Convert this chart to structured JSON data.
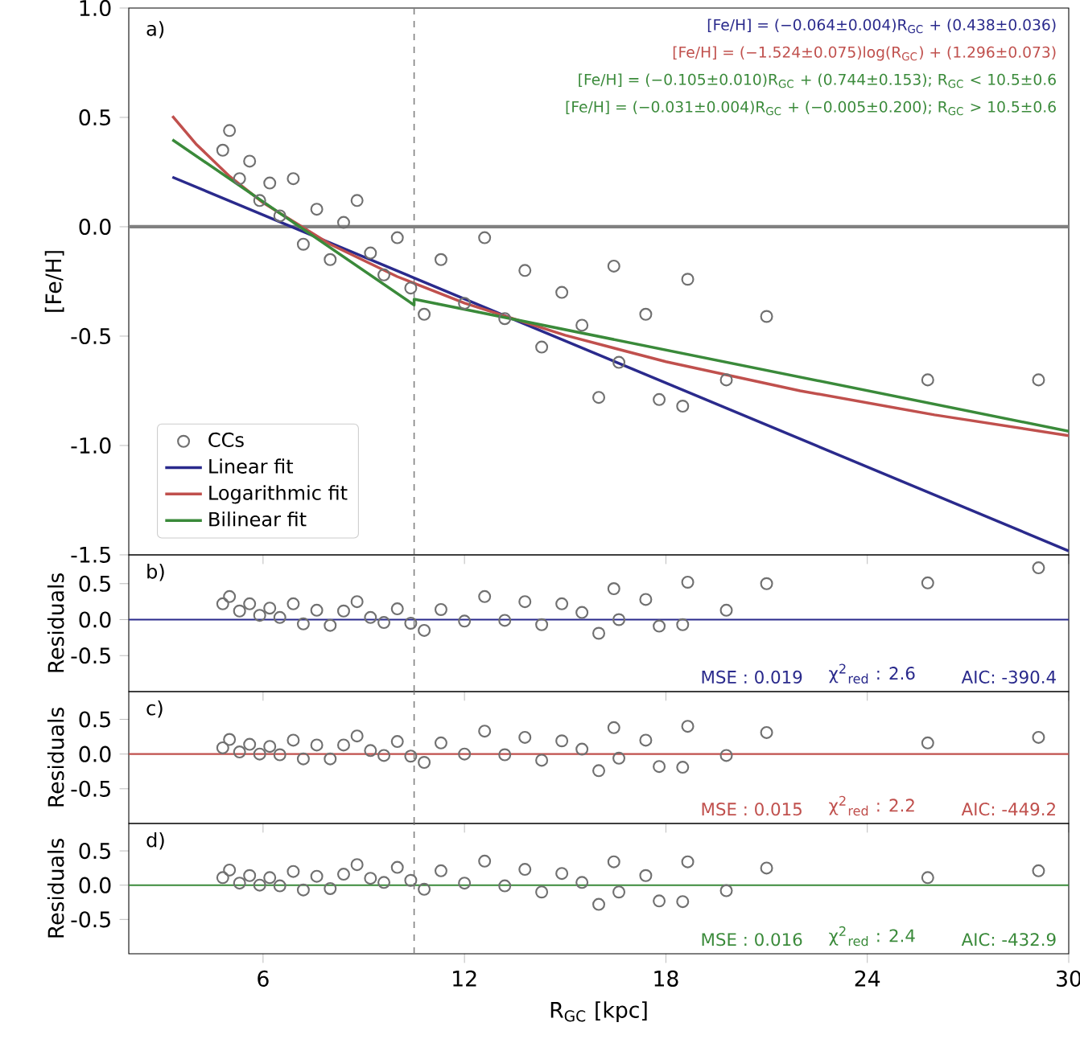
{
  "chart_data": [
    {
      "type": "scatter",
      "ylabel": "[Fe/H]",
      "xlim": [
        2,
        30
      ],
      "ylim": [
        -1.5,
        1.0
      ],
      "xticks": [
        6,
        12,
        18,
        24,
        30
      ],
      "yticks": [
        {
          "value": -1.5,
          "label": "-1.5"
        },
        {
          "value": -1.0,
          "label": "-1.0"
        },
        {
          "value": -0.5,
          "label": "-0.5"
        },
        {
          "value": 0.0,
          "label": "0.0"
        },
        {
          "value": 0.5,
          "label": "0.5"
        },
        {
          "value": 1.0,
          "label": "1.0"
        }
      ],
      "tick_labels": "y",
      "legend": "bottom left",
      "annotations": [
        "a)",
        "[Fe/H] = (−0.064±0.004)R$_{GC}$ + (0.438±0.036)",
        "[Fe/H] = (−1.524±0.075)log(R$_{GC}$) + (1.296±0.073)",
        "[Fe/H] = (−0.105±0.010)R$_{GC}$ + (0.744±0.153);   R$_{GC}$ < 10.5±0.6",
        "[Fe/H] = (−0.031±0.004)R$_{GC}$ + (−0.005±0.200);   R$_{GC}$ > 10.5±0.6"
      ],
      "ref_lines": [
        {
          "axis": "y",
          "value": 0.0,
          "color": "#808080",
          "line_style": "solid"
        },
        {
          "axis": "x",
          "value": 10.5,
          "color": "#808080",
          "line_style": "dashed"
        }
      ],
      "series": [
        {
          "name": "CCs",
          "marker": "circle",
          "color": "#707070",
          "x": [
            4.8,
            5.0,
            5.3,
            5.6,
            5.9,
            6.2,
            6.5,
            6.9,
            7.2,
            7.6,
            8.0,
            8.4,
            8.8,
            9.2,
            9.6,
            10.0,
            10.4,
            10.8,
            11.3,
            12.0,
            12.6,
            13.2,
            13.8,
            14.3,
            14.9,
            15.5,
            16.0,
            16.45,
            16.6,
            17.4,
            17.8,
            18.5,
            18.65,
            19.8,
            21.0,
            25.8,
            29.1
          ],
          "values": [
            0.35,
            0.44,
            0.22,
            0.3,
            0.12,
            0.2,
            0.05,
            0.22,
            -0.08,
            0.08,
            -0.15,
            0.02,
            0.12,
            -0.12,
            -0.22,
            -0.05,
            -0.28,
            -0.4,
            -0.15,
            -0.35,
            -0.05,
            -0.42,
            -0.2,
            -0.55,
            -0.3,
            -0.45,
            -0.78,
            -0.18,
            -0.62,
            -0.4,
            -0.79,
            -0.82,
            -0.24,
            -0.7,
            -0.41,
            -0.7,
            -0.7
          ]
        },
        {
          "name": "Linear fit",
          "type": "line",
          "color": "#2a2a8c",
          "x": [
            3.3,
            30
          ],
          "values": [
            0.227,
            -1.482
          ]
        },
        {
          "name": "Logarithmic fit",
          "type": "line",
          "color": "#c0504d",
          "x": [
            3.3,
            4,
            5,
            6,
            8,
            10,
            12,
            15,
            18,
            22,
            26,
            30
          ],
          "values": [
            0.506,
            0.379,
            0.231,
            0.11,
            -0.08,
            -0.228,
            -0.349,
            -0.496,
            -0.617,
            -0.75,
            -0.86,
            -0.955
          ]
        },
        {
          "name": "Bilinear fit",
          "type": "line",
          "color": "#3a8a3a",
          "x": [
            3.3,
            10.5,
            10.5,
            30
          ],
          "values": [
            0.398,
            -0.358,
            -0.331,
            -0.935
          ]
        }
      ]
    },
    {
      "type": "scatter",
      "ylabel": "Residuals",
      "xlim": [
        2,
        30
      ],
      "ylim": [
        -1.0,
        0.9
      ],
      "xticks": [
        6,
        12,
        18,
        24,
        30
      ],
      "yticks": [
        {
          "value": -0.5,
          "label": "-0.5"
        },
        {
          "value": 0.0,
          "label": "0.0"
        },
        {
          "value": 0.5,
          "label": "0.5"
        }
      ],
      "tick_labels": "y",
      "annotations": [
        "b)",
        "MSE : 0.019",
        "χ$^{2}$$_{red}$ : 2.6",
        "AIC: -390.4"
      ],
      "ref_lines": [
        {
          "axis": "y",
          "value": 0.0,
          "color": "#2a2a8c",
          "line_style": "solid"
        },
        {
          "axis": "x",
          "value": 10.5,
          "color": "#808080",
          "line_style": "dashed"
        }
      ],
      "series": [
        {
          "marker": "circle",
          "color": "#707070",
          "x": [
            4.8,
            5.0,
            5.3,
            5.6,
            5.9,
            6.2,
            6.5,
            6.9,
            7.2,
            7.6,
            8.0,
            8.4,
            8.8,
            9.2,
            9.6,
            10.0,
            10.4,
            10.8,
            11.3,
            12.0,
            12.6,
            13.2,
            13.8,
            14.3,
            14.9,
            15.5,
            16.0,
            16.45,
            16.6,
            17.4,
            17.8,
            18.5,
            18.65,
            19.8,
            21.0,
            25.8,
            29.1
          ],
          "values": [
            0.22,
            0.32,
            0.12,
            0.22,
            0.06,
            0.16,
            0.03,
            0.22,
            -0.06,
            0.13,
            -0.08,
            0.12,
            0.25,
            0.03,
            -0.04,
            0.15,
            -0.05,
            -0.15,
            0.14,
            -0.02,
            0.32,
            -0.01,
            0.25,
            -0.07,
            0.22,
            0.1,
            -0.19,
            0.43,
            0.0,
            0.28,
            -0.09,
            -0.07,
            0.52,
            0.13,
            0.5,
            0.51,
            0.72
          ]
        }
      ]
    },
    {
      "type": "scatter",
      "ylabel": "Residuals",
      "xlim": [
        2,
        30
      ],
      "ylim": [
        -1.0,
        0.9
      ],
      "xticks": [
        6,
        12,
        18,
        24,
        30
      ],
      "yticks": [
        {
          "value": -0.5,
          "label": "-0.5"
        },
        {
          "value": 0.0,
          "label": "0.0"
        },
        {
          "value": 0.5,
          "label": "0.5"
        }
      ],
      "tick_labels": "y",
      "annotations": [
        "c)",
        "MSE : 0.015",
        "χ$^{2}$$_{red}$ : 2.2",
        "AIC: -449.2"
      ],
      "ref_lines": [
        {
          "axis": "y",
          "value": 0.0,
          "color": "#c0504d",
          "line_style": "solid"
        },
        {
          "axis": "x",
          "value": 10.5,
          "color": "#808080",
          "line_style": "dashed"
        }
      ],
      "series": [
        {
          "marker": "circle",
          "color": "#707070",
          "x": [
            4.8,
            5.0,
            5.3,
            5.6,
            5.9,
            6.2,
            6.5,
            6.9,
            7.2,
            7.6,
            8.0,
            8.4,
            8.8,
            9.2,
            9.6,
            10.0,
            10.4,
            10.8,
            11.3,
            12.0,
            12.6,
            13.2,
            13.8,
            14.3,
            14.9,
            15.5,
            16.0,
            16.45,
            16.6,
            17.4,
            17.8,
            18.5,
            18.65,
            19.8,
            21.0,
            25.8,
            29.1
          ],
          "values": [
            0.09,
            0.21,
            0.03,
            0.14,
            0.0,
            0.11,
            -0.01,
            0.2,
            -0.07,
            0.13,
            -0.07,
            0.13,
            0.26,
            0.05,
            -0.02,
            0.18,
            -0.03,
            -0.12,
            0.16,
            0.0,
            0.33,
            -0.01,
            0.24,
            -0.09,
            0.19,
            0.07,
            -0.24,
            0.38,
            -0.06,
            0.2,
            -0.18,
            -0.19,
            0.4,
            -0.02,
            0.31,
            0.16,
            0.24
          ]
        }
      ]
    },
    {
      "type": "scatter",
      "ylabel": "Residuals",
      "xlabel": "R$_{GC}$ [kpc]",
      "xlim": [
        2,
        30
      ],
      "ylim": [
        -1.0,
        0.9
      ],
      "xticks": [
        6,
        12,
        18,
        24,
        30
      ],
      "yticks": [
        {
          "value": -0.5,
          "label": "-0.5"
        },
        {
          "value": 0.0,
          "label": "0.0"
        },
        {
          "value": 0.5,
          "label": "0.5"
        }
      ],
      "annotations": [
        "d)",
        "MSE : 0.016",
        "χ$^{2}$$_{red}$ : 2.4",
        "AIC: -432.9"
      ],
      "ref_lines": [
        {
          "axis": "y",
          "value": 0.0,
          "color": "#3a8a3a",
          "line_style": "solid"
        },
        {
          "axis": "x",
          "value": 10.5,
          "color": "#808080",
          "line_style": "dashed"
        }
      ],
      "series": [
        {
          "marker": "circle",
          "color": "#707070",
          "x": [
            4.8,
            5.0,
            5.3,
            5.6,
            5.9,
            6.2,
            6.5,
            6.9,
            7.2,
            7.6,
            8.0,
            8.4,
            8.8,
            9.2,
            9.6,
            10.0,
            10.4,
            10.8,
            11.3,
            12.0,
            12.6,
            13.2,
            13.8,
            14.3,
            14.9,
            15.5,
            16.0,
            16.45,
            16.6,
            17.4,
            17.8,
            18.5,
            18.65,
            19.8,
            21.0,
            25.8,
            29.1
          ],
          "values": [
            0.11,
            0.22,
            0.03,
            0.14,
            0.0,
            0.11,
            -0.01,
            0.2,
            -0.07,
            0.13,
            -0.05,
            0.16,
            0.3,
            0.1,
            0.04,
            0.26,
            0.07,
            -0.06,
            0.21,
            0.03,
            0.35,
            -0.01,
            0.23,
            -0.1,
            0.17,
            0.04,
            -0.28,
            0.34,
            -0.1,
            0.14,
            -0.23,
            -0.24,
            0.34,
            -0.08,
            0.25,
            0.11,
            0.21
          ]
        }
      ]
    }
  ]
}
